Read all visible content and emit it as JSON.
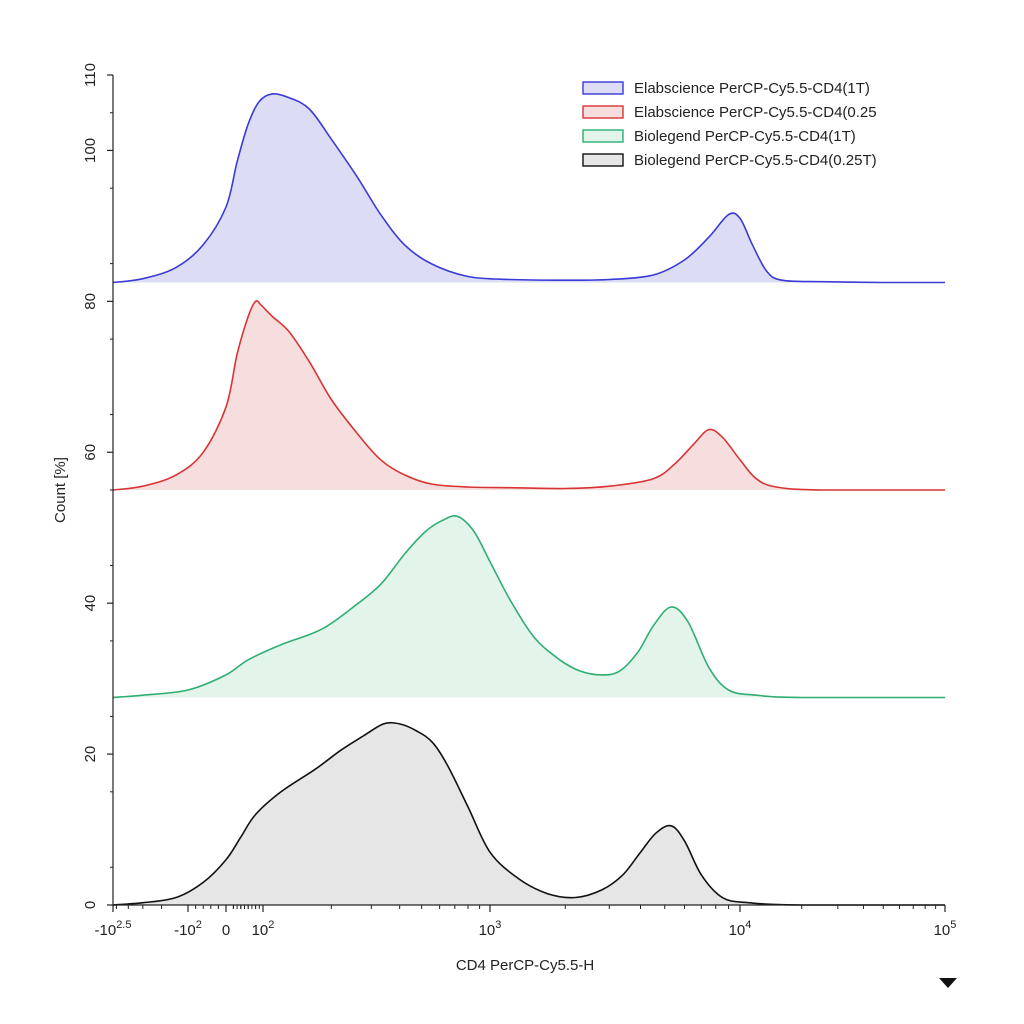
{
  "chart_data": {
    "type": "area",
    "xlabel": "CD4 PerCP-Cy5.5-H",
    "ylabel": "Count [%]",
    "xscale": "biexponential",
    "ylim": [
      0,
      110
    ],
    "x_ticks": [
      "-10^2.5",
      "-10^2",
      "0",
      "10^2",
      "10^3",
      "10^4",
      "10^5"
    ],
    "y_ticks": [
      "0",
      "20",
      "40",
      "60",
      "80",
      "100",
      "110"
    ],
    "legend_position": "top-right",
    "series": [
      {
        "name": "Elabscience PerCP-Cy5.5-CD4(1T)",
        "color": "#3a3ad6",
        "fill": "#dcdcf5",
        "offset": 82.5,
        "x": [
          -316,
          -200,
          -120,
          -60,
          0,
          30,
          60,
          90,
          110,
          130,
          160,
          200,
          260,
          330,
          420,
          550,
          800,
          1200,
          2000,
          3000,
          4500,
          6000,
          7500,
          9000,
          10000,
          11500,
          13500,
          16000,
          25000,
          50000,
          100000
        ],
        "y": [
          0,
          0.5,
          2,
          5,
          10,
          16,
          21,
          24,
          25,
          24.5,
          23,
          19,
          14,
          9,
          5,
          2.5,
          0.8,
          0.4,
          0.3,
          0.4,
          1,
          3,
          6,
          9,
          8.5,
          5,
          1.5,
          0.3,
          0.1,
          0,
          0
        ]
      },
      {
        "name": "Elabscience PerCP-Cy5.5-CD4(0.25",
        "color": "#d93434",
        "fill": "#f7dede",
        "offset": 55,
        "x": [
          -316,
          -200,
          -120,
          -60,
          0,
          30,
          60,
          80,
          95,
          110,
          130,
          160,
          200,
          260,
          330,
          420,
          550,
          800,
          1200,
          2000,
          3000,
          4500,
          5500,
          6500,
          7500,
          8500,
          10000,
          12000,
          15000,
          25000,
          100000
        ],
        "y": [
          0,
          0.5,
          2,
          5,
          11,
          18,
          23,
          25,
          24.5,
          23,
          21,
          17,
          12,
          7.5,
          4,
          2,
          0.8,
          0.4,
          0.3,
          0.2,
          0.5,
          1.5,
          3.5,
          6,
          8,
          7,
          4,
          1.5,
          0.4,
          0,
          0
        ]
      },
      {
        "name": "Biolegend PerCP-Cy5.5-CD4(1T)",
        "color": "#2fae72",
        "fill": "#e3f4ea",
        "offset": 27.5,
        "x": [
          -316,
          -200,
          -100,
          0,
          60,
          120,
          180,
          250,
          330,
          420,
          520,
          620,
          720,
          850,
          1000,
          1200,
          1500,
          1900,
          2300,
          2800,
          3300,
          3900,
          4500,
          5300,
          6200,
          7500,
          9000,
          12000,
          20000,
          100000
        ],
        "y": [
          0,
          0.3,
          1,
          3,
          5,
          7,
          9,
          12,
          15,
          19,
          22,
          23.5,
          24,
          22,
          18,
          13,
          8,
          5,
          3.5,
          3,
          3.5,
          6,
          9.5,
          12,
          10,
          4,
          1,
          0.3,
          0,
          0
        ]
      },
      {
        "name": "Biolegend PerCP-Cy5.5-CD4(0.25T)",
        "color": "#111111",
        "fill": "#e6e6e6",
        "offset": 0,
        "x": [
          -316,
          -200,
          -120,
          -60,
          0,
          40,
          80,
          120,
          170,
          220,
          280,
          340,
          400,
          480,
          560,
          650,
          800,
          1000,
          1300,
          1700,
          2200,
          2800,
          3400,
          4000,
          4600,
          5300,
          6000,
          7000,
          8500,
          11000,
          20000,
          100000
        ],
        "y": [
          0,
          0.3,
          1,
          3,
          6,
          9,
          12,
          15,
          18,
          20.5,
          22.5,
          24,
          24,
          23,
          21.5,
          18.5,
          13,
          7,
          3.5,
          1.5,
          1,
          2,
          4,
          7,
          9.5,
          10.5,
          8.5,
          4,
          1,
          0.3,
          0,
          0
        ]
      }
    ]
  }
}
